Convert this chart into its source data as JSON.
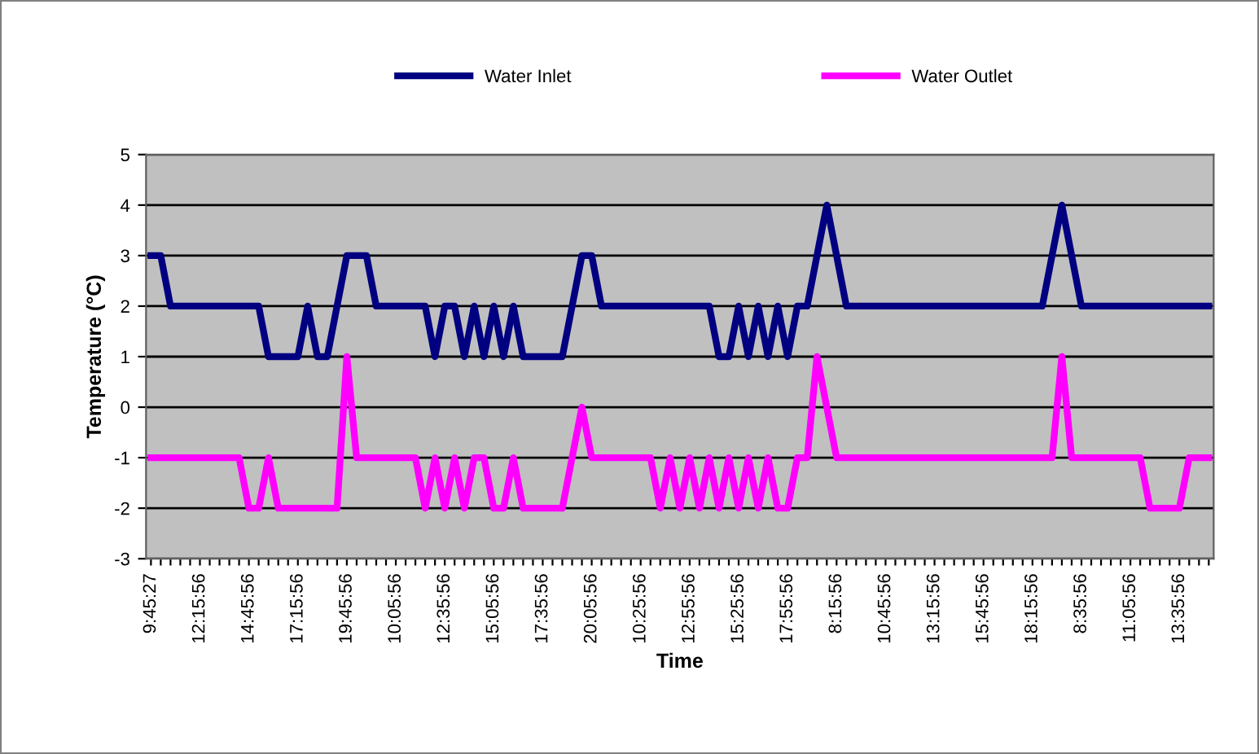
{
  "chart_data": {
    "type": "line",
    "xlabel": "Time",
    "ylabel": "Temperature (°C)",
    "categories": [
      "9:45:27",
      null,
      null,
      null,
      null,
      "12:15:56",
      null,
      null,
      null,
      null,
      "14:45:56",
      null,
      null,
      null,
      null,
      "17:15:56",
      null,
      null,
      null,
      null,
      "19:45:56",
      null,
      null,
      null,
      null,
      "10:05:56",
      null,
      null,
      null,
      null,
      "12:35:56",
      null,
      null,
      null,
      null,
      "15:05:56",
      null,
      null,
      null,
      null,
      "17:35:56",
      null,
      null,
      null,
      null,
      "20:05:56",
      null,
      null,
      null,
      null,
      "10:25:56",
      null,
      null,
      null,
      null,
      "12:55:56",
      null,
      null,
      null,
      null,
      "15:25:56",
      null,
      null,
      null,
      null,
      "17:55:56",
      null,
      null,
      null,
      null,
      "8:15:56",
      null,
      null,
      null,
      null,
      "10:45:56",
      null,
      null,
      null,
      null,
      "13:15:56",
      null,
      null,
      null,
      null,
      "15:45:56",
      null,
      null,
      null,
      null,
      "18:15:56",
      null,
      null,
      null,
      null,
      "8:35:56",
      null,
      null,
      null,
      null,
      "11:05:56",
      null,
      null,
      null,
      null,
      "13:35:56",
      null,
      null,
      null
    ],
    "series": [
      {
        "name": "Water Inlet",
        "color": "#000080",
        "values": [
          3,
          3,
          2,
          2,
          2,
          2,
          2,
          2,
          2,
          2,
          2,
          2,
          1,
          1,
          1,
          1,
          2,
          1,
          1,
          2,
          3,
          3,
          3,
          2,
          2,
          2,
          2,
          2,
          2,
          1,
          2,
          2,
          1,
          2,
          1,
          2,
          1,
          2,
          1,
          1,
          1,
          1,
          1,
          2,
          3,
          3,
          2,
          2,
          2,
          2,
          2,
          2,
          2,
          2,
          2,
          2,
          2,
          2,
          1,
          1,
          2,
          1,
          2,
          1,
          2,
          1,
          2,
          2,
          3,
          4,
          3,
          2,
          2,
          2,
          2,
          2,
          2,
          2,
          2,
          2,
          2,
          2,
          2,
          2,
          2,
          2,
          2,
          2,
          2,
          2,
          2,
          2,
          3,
          4,
          3,
          2,
          2,
          2,
          2,
          2,
          2,
          2,
          2,
          2,
          2,
          2,
          2,
          2,
          2
        ]
      },
      {
        "name": "Water Outlet",
        "color": "#ff00ff",
        "values": [
          -1,
          -1,
          -1,
          -1,
          -1,
          -1,
          -1,
          -1,
          -1,
          -1,
          -2,
          -2,
          -1,
          -2,
          -2,
          -2,
          -2,
          -2,
          -2,
          -2,
          1,
          -1,
          -1,
          -1,
          -1,
          -1,
          -1,
          -1,
          -2,
          -1,
          -2,
          -1,
          -2,
          -1,
          -1,
          -2,
          -2,
          -1,
          -2,
          -2,
          -2,
          -2,
          -2,
          -1,
          0,
          -1,
          -1,
          -1,
          -1,
          -1,
          -1,
          -1,
          -2,
          -1,
          -2,
          -1,
          -2,
          -1,
          -2,
          -1,
          -2,
          -1,
          -2,
          -1,
          -2,
          -2,
          -1,
          -1,
          1,
          0,
          -1,
          -1,
          -1,
          -1,
          -1,
          -1,
          -1,
          -1,
          -1,
          -1,
          -1,
          -1,
          -1,
          -1,
          -1,
          -1,
          -1,
          -1,
          -1,
          -1,
          -1,
          -1,
          -1,
          1,
          -1,
          -1,
          -1,
          -1,
          -1,
          -1,
          -1,
          -1,
          -2,
          -2,
          -2,
          -2,
          -1,
          -1,
          -1
        ]
      }
    ],
    "ylim": [
      -3,
      5
    ],
    "yticks": [
      -3,
      -2,
      -1,
      0,
      1,
      2,
      3,
      4,
      5
    ],
    "grid": "y",
    "legend": "top",
    "marker": "none",
    "line_style": "solid"
  }
}
